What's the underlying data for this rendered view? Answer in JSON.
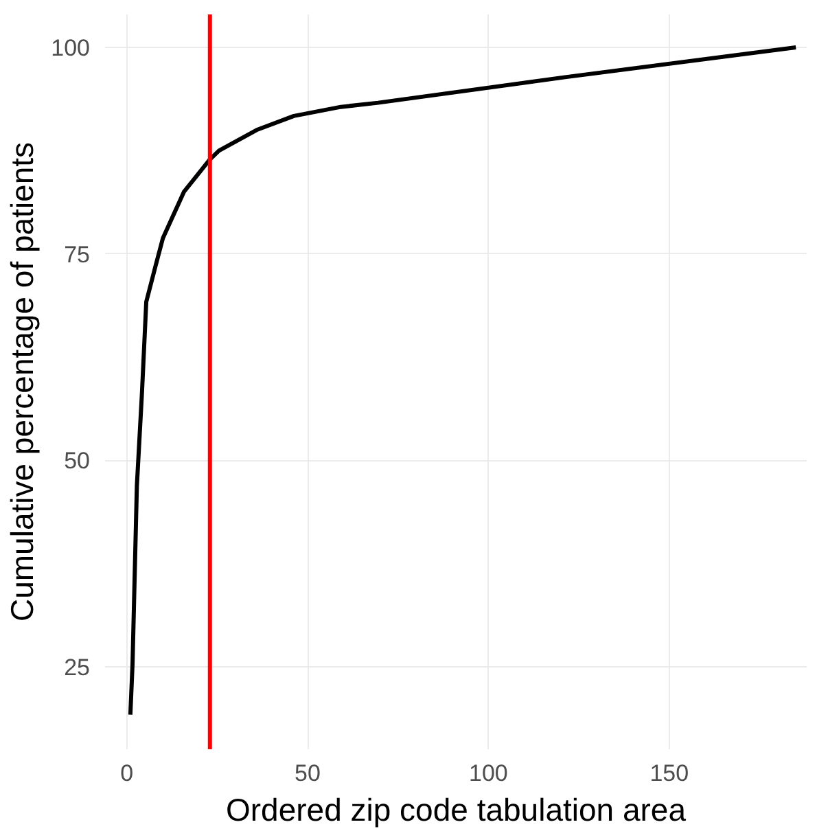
{
  "chart_data": {
    "type": "line",
    "xlabel": "Ordered zip code tabulation area",
    "ylabel": "Cumulative percentage of patients",
    "x": [
      1,
      1.6,
      2.8,
      4.2,
      5.4,
      8,
      10,
      15.8,
      22.9,
      25.5,
      35.9,
      46.2,
      59.2,
      69.5,
      121.2,
      185
    ],
    "series": [
      {
        "color": "#000000",
        "values": [
          19.2,
          25.3,
          46.9,
          58.1,
          69.2,
          73.6,
          76.9,
          82.5,
          86.4,
          87.5,
          90.0,
          91.7,
          92.8,
          93.3,
          96.4,
          100
        ]
      }
    ],
    "xlim": [
      -6,
      188
    ],
    "ylim": [
      15,
      104
    ],
    "xticks": [
      0,
      50,
      100,
      150
    ],
    "yticks": [
      25,
      50,
      75,
      100
    ],
    "ref_lines": [
      {
        "axis": "x",
        "value": 23,
        "color": "#ff0000"
      }
    ],
    "grid": true
  }
}
